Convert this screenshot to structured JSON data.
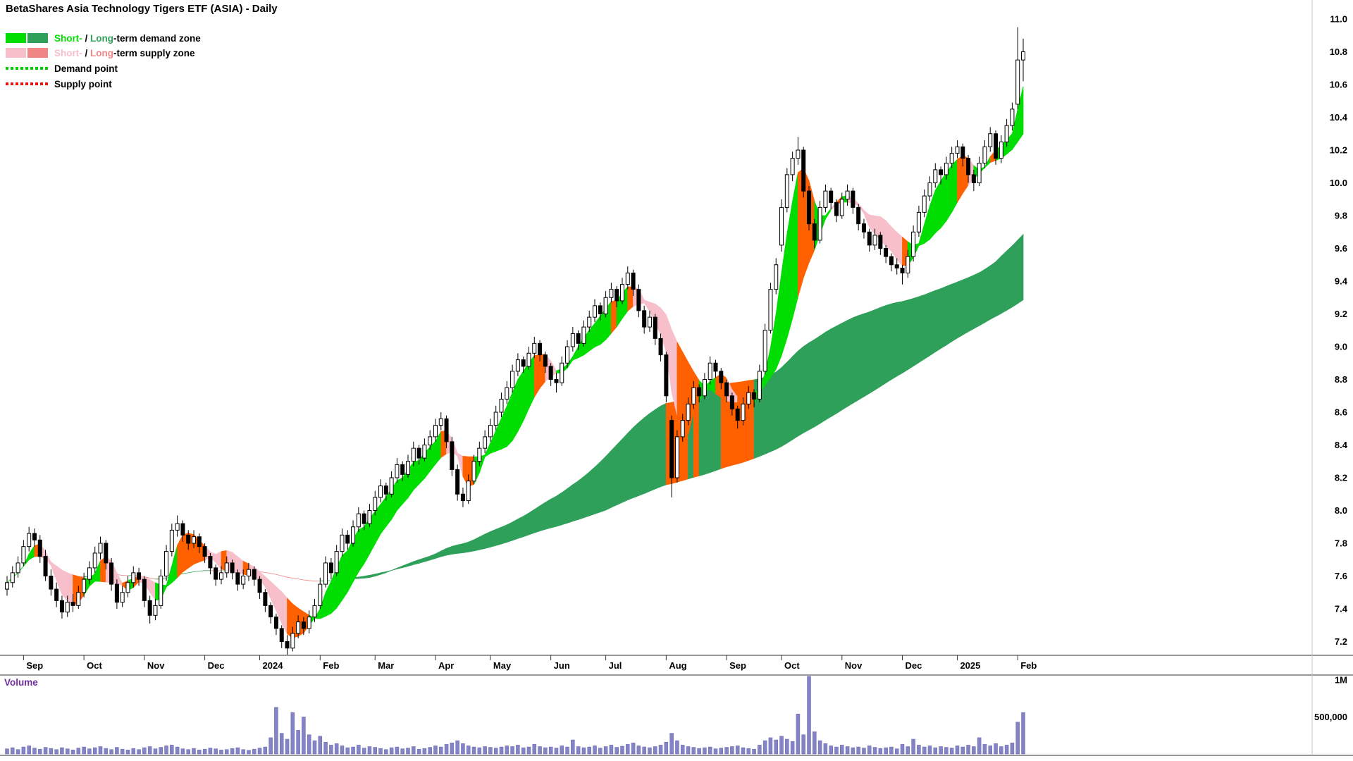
{
  "title": "BetaShares Asia Technology Tigers ETF (ASIA) - Daily",
  "legend": {
    "demand_zone": {
      "short_label": "Short-",
      "separator": " / ",
      "long_label": "Long",
      "suffix": "-term demand zone",
      "short_color": "#00dd00",
      "long_color": "#2fa05a"
    },
    "supply_zone": {
      "short_label": "Short-",
      "separator": " / ",
      "long_label": "Long",
      "suffix": "-term supply zone",
      "short_color": "#f7bfca",
      "long_color": "#ef8585"
    },
    "demand_point": {
      "label": "Demand point",
      "color": "#00cc00"
    },
    "supply_point": {
      "label": "Supply point",
      "color": "#ee1111"
    }
  },
  "chart_data": {
    "type": "candlestick",
    "title": "BetaShares Asia Technology Tigers ETF (ASIA) - Daily",
    "x_axis": {
      "labels": [
        "Sep",
        "Oct",
        "Nov",
        "Dec",
        "2024",
        "Feb",
        "Mar",
        "Apr",
        "May",
        "Jun",
        "Jul",
        "Aug",
        "Sep",
        "Oct",
        "Nov",
        "Dec",
        "2025",
        "Feb"
      ],
      "month_start_indices": [
        3,
        14,
        25,
        36,
        46,
        57,
        67,
        78,
        88,
        99,
        109,
        120,
        131,
        141,
        152,
        163,
        173,
        184
      ]
    },
    "y_axis": {
      "min": 7.1,
      "max": 11.12,
      "tick_step": 0.2,
      "ticks": [
        7.2,
        7.4,
        7.6,
        7.8,
        8.0,
        8.2,
        8.4,
        8.6,
        8.8,
        9.0,
        9.2,
        9.4,
        9.6,
        9.8,
        10.0,
        10.2,
        10.4,
        10.6,
        10.8,
        11.0
      ]
    },
    "style": {
      "up_color": "#ffffff",
      "down_color": "#000000",
      "outline_color": "#000000",
      "volume_bar_color": "#8383c6",
      "background": "#ffffff"
    },
    "bands": {
      "short": {
        "fast_period": 4,
        "slow_period": 12,
        "demand_color": "#00dd00",
        "supply_color": "#f7bfca",
        "mixed_color": "#ff6000"
      },
      "long": {
        "fast_period": 60,
        "slow_period": 110,
        "demand_color": "#2fa05a",
        "supply_color": "#ef8585",
        "mixed_color": "#ff6000"
      }
    },
    "candles": [
      [
        7.52,
        7.6,
        7.48,
        7.56
      ],
      [
        7.56,
        7.66,
        7.53,
        7.62
      ],
      [
        7.62,
        7.72,
        7.59,
        7.68
      ],
      [
        7.68,
        7.82,
        7.66,
        7.78
      ],
      [
        7.78,
        7.9,
        7.75,
        7.86
      ],
      [
        7.86,
        7.89,
        7.78,
        7.82
      ],
      [
        7.82,
        7.85,
        7.68,
        7.72
      ],
      [
        7.72,
        7.76,
        7.57,
        7.6
      ],
      [
        7.6,
        7.64,
        7.48,
        7.52
      ],
      [
        7.52,
        7.56,
        7.41,
        7.45
      ],
      [
        7.45,
        7.48,
        7.34,
        7.38
      ],
      [
        7.38,
        7.48,
        7.35,
        7.44
      ],
      [
        7.44,
        7.49,
        7.38,
        7.42
      ],
      [
        7.42,
        7.54,
        7.4,
        7.5
      ],
      [
        7.5,
        7.62,
        7.47,
        7.58
      ],
      [
        7.58,
        7.69,
        7.55,
        7.65
      ],
      [
        7.65,
        7.78,
        7.62,
        7.74
      ],
      [
        7.74,
        7.84,
        7.7,
        7.8
      ],
      [
        7.8,
        7.82,
        7.64,
        7.68
      ],
      [
        7.68,
        7.71,
        7.51,
        7.55
      ],
      [
        7.55,
        7.58,
        7.4,
        7.44
      ],
      [
        7.44,
        7.54,
        7.41,
        7.5
      ],
      [
        7.5,
        7.6,
        7.47,
        7.56
      ],
      [
        7.56,
        7.66,
        7.53,
        7.62
      ],
      [
        7.62,
        7.65,
        7.54,
        7.58
      ],
      [
        7.58,
        7.6,
        7.41,
        7.45
      ],
      [
        7.45,
        7.48,
        7.31,
        7.36
      ],
      [
        7.36,
        7.46,
        7.33,
        7.42
      ],
      [
        7.42,
        7.64,
        7.4,
        7.6
      ],
      [
        7.6,
        7.79,
        7.57,
        7.75
      ],
      [
        7.75,
        7.92,
        7.72,
        7.88
      ],
      [
        7.88,
        7.97,
        7.84,
        7.92
      ],
      [
        7.92,
        7.94,
        7.81,
        7.85
      ],
      [
        7.85,
        7.88,
        7.76,
        7.8
      ],
      [
        7.8,
        7.88,
        7.77,
        7.84
      ],
      [
        7.84,
        7.86,
        7.74,
        7.78
      ],
      [
        7.78,
        7.8,
        7.68,
        7.72
      ],
      [
        7.72,
        7.74,
        7.61,
        7.65
      ],
      [
        7.65,
        7.67,
        7.54,
        7.58
      ],
      [
        7.58,
        7.66,
        7.55,
        7.62
      ],
      [
        7.62,
        7.72,
        7.59,
        7.68
      ],
      [
        7.68,
        7.7,
        7.58,
        7.62
      ],
      [
        7.62,
        7.64,
        7.51,
        7.55
      ],
      [
        7.55,
        7.64,
        7.52,
        7.6
      ],
      [
        7.6,
        7.68,
        7.57,
        7.64
      ],
      [
        7.64,
        7.66,
        7.54,
        7.58
      ],
      [
        7.58,
        7.6,
        7.46,
        7.5
      ],
      [
        7.5,
        7.52,
        7.38,
        7.42
      ],
      [
        7.42,
        7.44,
        7.31,
        7.35
      ],
      [
        7.35,
        7.37,
        7.24,
        7.28
      ],
      [
        7.28,
        7.3,
        7.16,
        7.2
      ],
      [
        7.2,
        7.24,
        7.12,
        7.16
      ],
      [
        7.16,
        7.29,
        7.14,
        7.25
      ],
      [
        7.25,
        7.36,
        7.22,
        7.32
      ],
      [
        7.32,
        7.35,
        7.24,
        7.28
      ],
      [
        7.28,
        7.39,
        7.25,
        7.35
      ],
      [
        7.35,
        7.46,
        7.32,
        7.42
      ],
      [
        7.42,
        7.59,
        7.4,
        7.55
      ],
      [
        7.55,
        7.72,
        7.53,
        7.68
      ],
      [
        7.68,
        7.71,
        7.58,
        7.62
      ],
      [
        7.62,
        7.79,
        7.6,
        7.75
      ],
      [
        7.75,
        7.89,
        7.72,
        7.85
      ],
      [
        7.85,
        7.88,
        7.76,
        7.8
      ],
      [
        7.8,
        7.94,
        7.78,
        7.9
      ],
      [
        7.9,
        8.02,
        7.87,
        7.98
      ],
      [
        7.98,
        8.0,
        7.88,
        7.92
      ],
      [
        7.92,
        8.04,
        7.9,
        8.0
      ],
      [
        8.0,
        8.12,
        7.97,
        8.08
      ],
      [
        8.08,
        8.19,
        8.05,
        8.15
      ],
      [
        8.15,
        8.17,
        8.06,
        8.1
      ],
      [
        8.1,
        8.24,
        8.08,
        8.2
      ],
      [
        8.2,
        8.32,
        8.17,
        8.28
      ],
      [
        8.28,
        8.3,
        8.18,
        8.22
      ],
      [
        8.22,
        8.34,
        8.2,
        8.3
      ],
      [
        8.3,
        8.42,
        8.27,
        8.38
      ],
      [
        8.38,
        8.4,
        8.28,
        8.32
      ],
      [
        8.32,
        8.44,
        8.3,
        8.4
      ],
      [
        8.4,
        8.49,
        8.37,
        8.45
      ],
      [
        8.45,
        8.56,
        8.42,
        8.52
      ],
      [
        8.52,
        8.6,
        8.49,
        8.56
      ],
      [
        8.56,
        8.58,
        8.38,
        8.42
      ],
      [
        8.42,
        8.45,
        8.21,
        8.25
      ],
      [
        8.25,
        8.28,
        8.06,
        8.1
      ],
      [
        8.1,
        8.14,
        8.02,
        8.06
      ],
      [
        8.06,
        8.22,
        8.04,
        8.18
      ],
      [
        8.18,
        8.34,
        8.16,
        8.3
      ],
      [
        8.3,
        8.42,
        8.27,
        8.38
      ],
      [
        8.38,
        8.49,
        8.35,
        8.45
      ],
      [
        8.45,
        8.56,
        8.42,
        8.52
      ],
      [
        8.52,
        8.64,
        8.49,
        8.6
      ],
      [
        8.6,
        8.72,
        8.57,
        8.68
      ],
      [
        8.68,
        8.79,
        8.65,
        8.75
      ],
      [
        8.75,
        8.89,
        8.72,
        8.85
      ],
      [
        8.85,
        8.96,
        8.82,
        8.92
      ],
      [
        8.92,
        8.94,
        8.84,
        8.88
      ],
      [
        8.88,
        9.0,
        8.86,
        8.96
      ],
      [
        8.96,
        9.06,
        8.93,
        9.02
      ],
      [
        9.02,
        9.04,
        8.91,
        8.95
      ],
      [
        8.95,
        8.97,
        8.84,
        8.88
      ],
      [
        8.88,
        8.9,
        8.76,
        8.8
      ],
      [
        8.8,
        8.84,
        8.72,
        8.78
      ],
      [
        8.78,
        8.94,
        8.76,
        8.9
      ],
      [
        8.9,
        9.04,
        8.87,
        9.0
      ],
      [
        9.0,
        9.12,
        8.97,
        9.08
      ],
      [
        9.08,
        9.1,
        8.98,
        9.02
      ],
      [
        9.02,
        9.16,
        9.0,
        9.12
      ],
      [
        9.12,
        9.22,
        9.09,
        9.18
      ],
      [
        9.18,
        9.29,
        9.15,
        9.25
      ],
      [
        9.25,
        9.27,
        9.16,
        9.2
      ],
      [
        9.2,
        9.34,
        9.18,
        9.3
      ],
      [
        9.3,
        9.39,
        9.27,
        9.35
      ],
      [
        9.35,
        9.37,
        9.24,
        9.28
      ],
      [
        9.28,
        9.42,
        9.26,
        9.38
      ],
      [
        9.38,
        9.49,
        9.35,
        9.45
      ],
      [
        9.45,
        9.47,
        9.31,
        9.35
      ],
      [
        9.35,
        9.38,
        9.18,
        9.22
      ],
      [
        9.22,
        9.25,
        9.08,
        9.12
      ],
      [
        9.12,
        9.22,
        9.09,
        9.18
      ],
      [
        9.18,
        9.2,
        9.01,
        9.05
      ],
      [
        9.05,
        9.08,
        8.91,
        8.95
      ],
      [
        8.95,
        8.97,
        8.66,
        8.7
      ],
      [
        8.55,
        8.58,
        8.08,
        8.2
      ],
      [
        8.2,
        8.49,
        8.17,
        8.45
      ],
      [
        8.45,
        8.59,
        8.42,
        8.55
      ],
      [
        8.55,
        8.69,
        8.52,
        8.65
      ],
      [
        8.65,
        8.79,
        8.62,
        8.75
      ],
      [
        8.75,
        8.77,
        8.66,
        8.7
      ],
      [
        8.7,
        8.84,
        8.68,
        8.8
      ],
      [
        8.8,
        8.94,
        8.77,
        8.9
      ],
      [
        8.9,
        8.92,
        8.81,
        8.85
      ],
      [
        8.85,
        8.87,
        8.74,
        8.78
      ],
      [
        8.78,
        8.8,
        8.66,
        8.7
      ],
      [
        8.7,
        8.72,
        8.58,
        8.62
      ],
      [
        8.62,
        8.64,
        8.5,
        8.55
      ],
      [
        8.55,
        8.69,
        8.52,
        8.65
      ],
      [
        8.65,
        8.76,
        8.62,
        8.72
      ],
      [
        8.72,
        8.74,
        8.63,
        8.68
      ],
      [
        8.68,
        8.89,
        8.66,
        8.85
      ],
      [
        8.85,
        9.14,
        8.83,
        9.1
      ],
      [
        9.1,
        9.39,
        9.08,
        9.35
      ],
      [
        9.35,
        9.54,
        9.32,
        9.5
      ],
      [
        9.62,
        9.9,
        9.58,
        9.85
      ],
      [
        9.85,
        10.09,
        9.82,
        10.05
      ],
      [
        10.05,
        10.19,
        10.01,
        10.15
      ],
      [
        10.15,
        10.28,
        10.11,
        10.2
      ],
      [
        10.2,
        10.22,
        9.91,
        9.95
      ],
      [
        9.95,
        9.98,
        9.71,
        9.75
      ],
      [
        9.75,
        9.78,
        9.6,
        9.65
      ],
      [
        9.65,
        9.89,
        9.63,
        9.85
      ],
      [
        9.85,
        9.99,
        9.82,
        9.95
      ],
      [
        9.95,
        9.97,
        9.84,
        9.88
      ],
      [
        9.88,
        9.9,
        9.76,
        9.8
      ],
      [
        9.8,
        9.94,
        9.78,
        9.9
      ],
      [
        9.9,
        9.99,
        9.86,
        9.95
      ],
      [
        9.95,
        9.97,
        9.81,
        9.85
      ],
      [
        9.85,
        9.87,
        9.71,
        9.75
      ],
      [
        9.75,
        9.78,
        9.66,
        9.7
      ],
      [
        9.7,
        9.72,
        9.58,
        9.62
      ],
      [
        9.62,
        9.72,
        9.59,
        9.68
      ],
      [
        9.68,
        9.7,
        9.56,
        9.6
      ],
      [
        9.6,
        9.62,
        9.51,
        9.55
      ],
      [
        9.55,
        9.57,
        9.46,
        9.5
      ],
      [
        9.5,
        9.54,
        9.44,
        9.48
      ],
      [
        9.48,
        9.5,
        9.38,
        9.45
      ],
      [
        9.45,
        9.59,
        9.42,
        9.55
      ],
      [
        9.55,
        9.74,
        9.52,
        9.7
      ],
      [
        9.7,
        9.86,
        9.67,
        9.82
      ],
      [
        9.82,
        9.96,
        9.79,
        9.92
      ],
      [
        9.92,
        10.04,
        9.89,
        10.0
      ],
      [
        10.0,
        10.12,
        9.97,
        10.08
      ],
      [
        10.08,
        10.1,
        9.99,
        10.05
      ],
      [
        10.05,
        10.16,
        10.02,
        10.12
      ],
      [
        10.12,
        10.22,
        10.09,
        10.18
      ],
      [
        10.18,
        10.26,
        10.15,
        10.22
      ],
      [
        10.22,
        10.24,
        10.1,
        10.15
      ],
      [
        10.15,
        10.17,
        10.0,
        10.05
      ],
      [
        10.05,
        10.08,
        9.95,
        10.0
      ],
      [
        10.0,
        10.16,
        9.98,
        10.12
      ],
      [
        10.12,
        10.26,
        10.09,
        10.22
      ],
      [
        10.22,
        10.34,
        10.19,
        10.3
      ],
      [
        10.3,
        10.32,
        10.11,
        10.15
      ],
      [
        10.15,
        10.29,
        10.12,
        10.25
      ],
      [
        10.25,
        10.39,
        10.22,
        10.35
      ],
      [
        10.35,
        10.49,
        10.32,
        10.45
      ],
      [
        10.48,
        10.95,
        10.45,
        10.75
      ],
      [
        10.75,
        10.88,
        10.62,
        10.8
      ]
    ],
    "volume": {
      "label": "Volume",
      "label_color": "#7030a0",
      "axis_ticks": [
        {
          "label": "1M",
          "value": 1000000
        },
        {
          "label": "500,000",
          "value": 500000
        }
      ],
      "values": [
        70000,
        85000,
        60000,
        95000,
        110000,
        80000,
        65000,
        90000,
        75000,
        60000,
        85000,
        70000,
        55000,
        80000,
        95000,
        70000,
        85000,
        100000,
        75000,
        60000,
        90000,
        65000,
        55000,
        75000,
        60000,
        85000,
        100000,
        70000,
        90000,
        110000,
        120000,
        95000,
        70000,
        60000,
        75000,
        55000,
        65000,
        80000,
        70000,
        55000,
        60000,
        75000,
        85000,
        60000,
        50000,
        65000,
        80000,
        95000,
        220000,
        630000,
        280000,
        200000,
        560000,
        320000,
        500000,
        260000,
        180000,
        240000,
        160000,
        120000,
        140000,
        110000,
        85000,
        95000,
        120000,
        80000,
        100000,
        90000,
        75000,
        60000,
        85000,
        95000,
        70000,
        80000,
        100000,
        65000,
        75000,
        90000,
        110000,
        95000,
        130000,
        150000,
        180000,
        140000,
        110000,
        95000,
        85000,
        100000,
        90000,
        80000,
        95000,
        110000,
        100000,
        120000,
        85000,
        95000,
        130000,
        100000,
        85000,
        95000,
        80000,
        110000,
        95000,
        190000,
        100000,
        85000,
        95000,
        110000,
        80000,
        100000,
        120000,
        90000,
        105000,
        130000,
        150000,
        110000,
        95000,
        85000,
        100000,
        120000,
        160000,
        280000,
        180000,
        120000,
        100000,
        90000,
        75000,
        85000,
        95000,
        70000,
        80000,
        90000,
        100000,
        110000,
        85000,
        75000,
        65000,
        120000,
        180000,
        220000,
        190000,
        240000,
        200000,
        170000,
        540000,
        260000,
        1050000,
        300000,
        180000,
        140000,
        110000,
        95000,
        120000,
        100000,
        85000,
        95000,
        80000,
        110000,
        90000,
        75000,
        85000,
        95000,
        70000,
        130000,
        100000,
        200000,
        120000,
        95000,
        110000,
        85000,
        100000,
        90000,
        80000,
        110000,
        95000,
        120000,
        100000,
        220000,
        130000,
        110000,
        140000,
        100000,
        120000,
        150000,
        430000,
        560000
      ]
    }
  }
}
